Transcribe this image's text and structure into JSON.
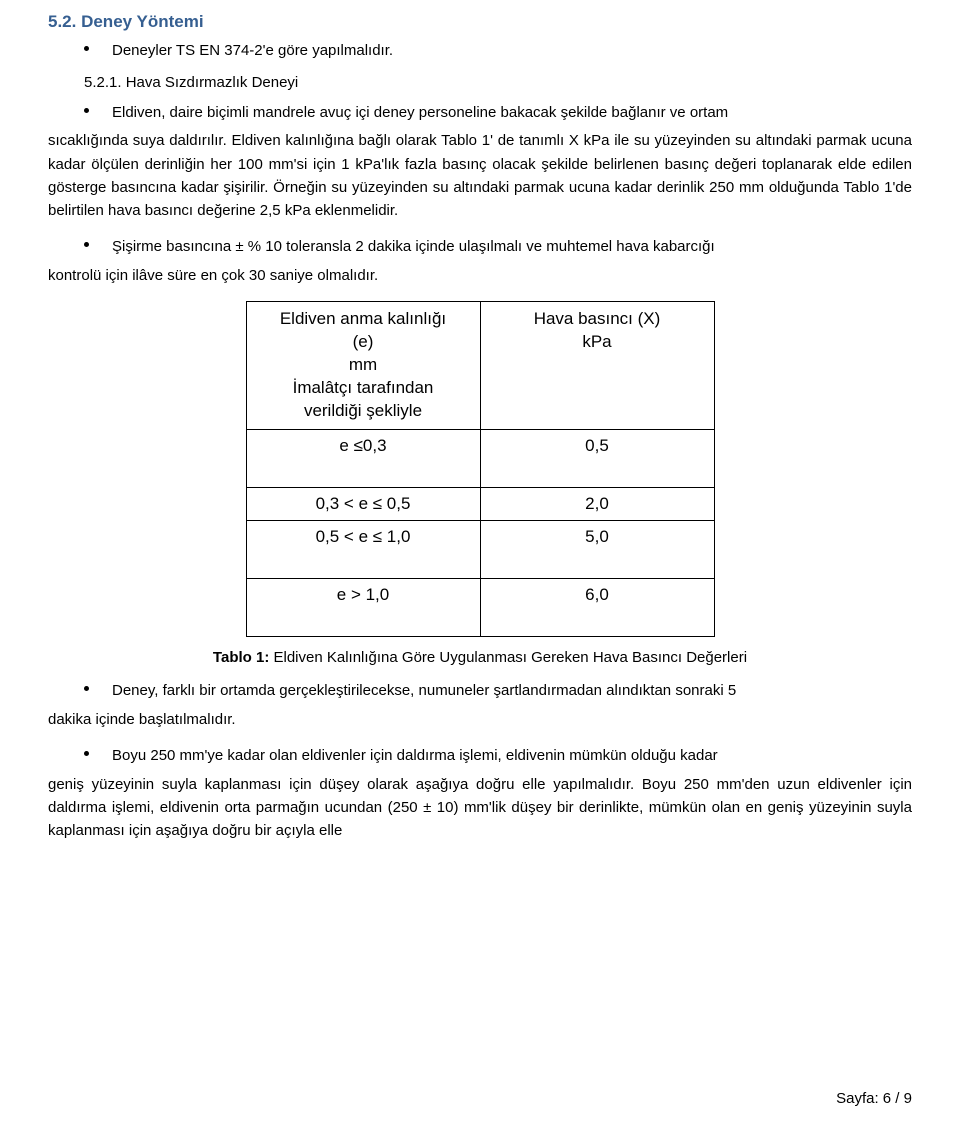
{
  "section_heading": "5.2. Deney Yöntemi",
  "bullet_intro": "Deneyler TS EN 374-2'e göre yapılmalıdır.",
  "sub_num": "5.2.1. Hava Sızdırmazlık Deneyi",
  "b521_1": "Eldiven, daire biçimli mandrele avuç içi deney personeline bakacak şekilde bağlanır ve ortam",
  "b521_1_cont": "sıcaklığında suya daldırılır. Eldiven kalınlığına bağlı olarak Tablo 1' de tanımlı X kPa ile su yüzeyinden su altındaki parmak ucuna kadar ölçülen derinliğin her 100 mm'si için 1 kPa'lık fazla basınç olacak şekilde belirlenen basınç değeri toplanarak elde edilen gösterge basıncına kadar şişirilir. Örneğin su yüzeyinden su altındaki parmak ucuna kadar derinlik 250 mm olduğunda Tablo 1'de belirtilen hava basıncı değerine 2,5 kPa eklenmelidir.",
  "b521_2": "Şişirme basıncına ± % 10 toleransla 2 dakika içinde ulaşılmalı ve muhtemel hava kabarcığı",
  "b521_2_cont": "kontrolü için ilâve süre en çok 30 saniye olmalıdır.",
  "table": {
    "col1_l1": "Eldiven anma kalınlığı",
    "col1_l2": "(e)",
    "col1_l3": "mm",
    "col1_l4": "İmalâtçı tarafından",
    "col1_l5": "verildiği şekliyle",
    "col2_l1": "Hava basıncı (X)",
    "col2_l2": "kPa",
    "r1c1": "e ≤0,3",
    "r1c2": "0,5",
    "r2c1": "0,3 < e ≤ 0,5",
    "r2c2": "2,0",
    "r3c1": "0,5 < e ≤ 1,0",
    "r3c2": "5,0",
    "r4c1": "e > 1,0",
    "r4c2": "6,0"
  },
  "caption_bold": "Tablo 1:",
  "caption_rest": " Eldiven Kalınlığına Göre Uygulanması Gereken Hava Basıncı Değerleri",
  "b521_3": "Deney, farklı bir ortamda gerçekleştirilecekse, numuneler şartlandırmadan alındıktan sonraki 5",
  "b521_3_cont": "dakika içinde başlatılmalıdır.",
  "b521_4": "Boyu 250 mm'ye kadar olan eldivenler için daldırma işlemi, eldivenin mümkün olduğu kadar",
  "b521_4_cont": "geniş yüzeyinin suyla kaplanması için düşey olarak aşağıya doğru elle yapılmalıdır. Boyu 250 mm'den uzun eldivenler için daldırma işlemi, eldivenin orta parmağın ucundan (250 ± 10) mm'lik düşey bir derinlikte, mümkün olan en geniş yüzeyinin suyla kaplanması için aşağıya doğru bir açıyla elle",
  "footer": "Sayfa: 6 / 9"
}
